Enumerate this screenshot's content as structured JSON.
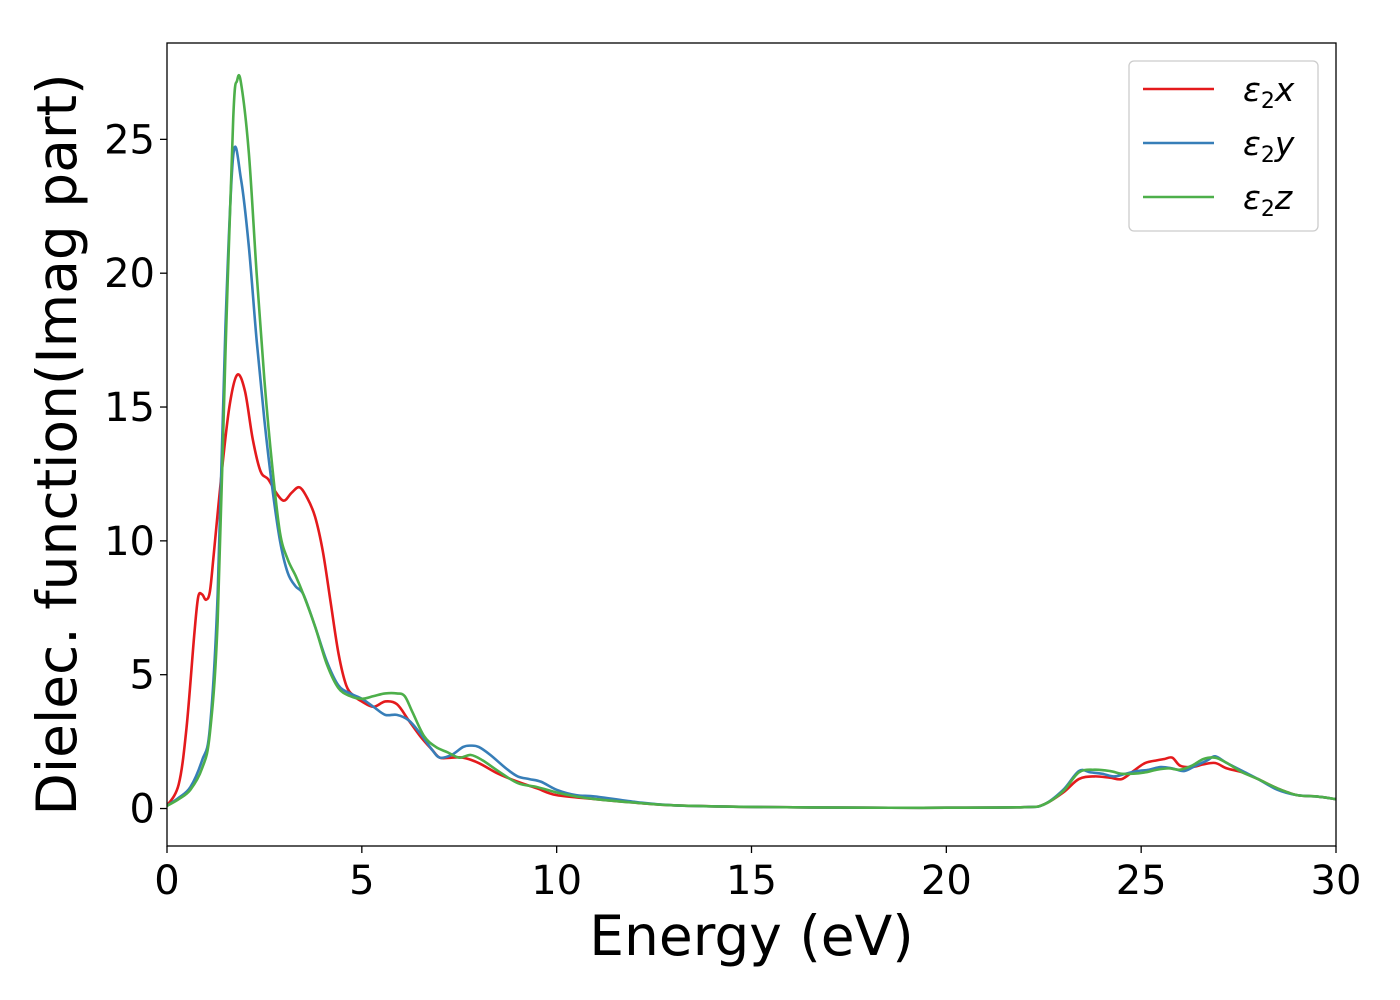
{
  "chart_data": {
    "type": "line",
    "title": "",
    "xlabel": "Energy (eV)",
    "ylabel": "Dielec. function(Imag part)",
    "xlim": [
      0,
      30
    ],
    "ylim": [
      -1.4,
      28.6
    ],
    "xticks": [
      0,
      5,
      10,
      15,
      20,
      25,
      30
    ],
    "yticks": [
      0,
      5,
      10,
      15,
      20,
      25
    ],
    "grid": false,
    "legend_position": "top-right",
    "series": [
      {
        "name": "ε2x",
        "legend_base": "ε",
        "legend_sub": "2",
        "legend_var": "x",
        "color": "#e41a1c",
        "x": [
          0,
          0.3,
          0.5,
          0.7,
          0.8,
          0.9,
          1.0,
          1.1,
          1.2,
          1.4,
          1.6,
          1.8,
          2.0,
          2.2,
          2.4,
          2.6,
          2.8,
          3.0,
          3.2,
          3.4,
          3.6,
          3.8,
          4.0,
          4.2,
          4.4,
          4.6,
          4.8,
          5.0,
          5.3,
          5.6,
          5.9,
          6.2,
          6.5,
          6.8,
          7.0,
          7.3,
          7.6,
          8.0,
          8.5,
          9.0,
          9.5,
          10.0,
          11.0,
          12.0,
          13.0,
          15.0,
          18.0,
          20.0,
          22.0,
          22.5,
          23.0,
          23.4,
          23.8,
          24.2,
          24.5,
          24.8,
          25.1,
          25.4,
          25.6,
          25.8,
          26.0,
          26.3,
          26.6,
          26.9,
          27.2,
          27.6,
          28.0,
          28.5,
          29.0,
          29.5,
          30.0
        ],
        "y": [
          0.1,
          0.9,
          3.0,
          6.5,
          7.9,
          8.0,
          7.8,
          8.1,
          9.5,
          12.5,
          15.0,
          16.2,
          15.6,
          13.8,
          12.6,
          12.3,
          11.8,
          11.5,
          11.8,
          12.0,
          11.6,
          10.9,
          9.6,
          7.7,
          5.8,
          4.6,
          4.2,
          4.0,
          3.8,
          4.0,
          3.9,
          3.3,
          2.7,
          2.2,
          1.9,
          1.9,
          1.9,
          1.7,
          1.3,
          1.0,
          0.75,
          0.5,
          0.35,
          0.22,
          0.12,
          0.06,
          0.03,
          0.03,
          0.05,
          0.15,
          0.6,
          1.1,
          1.2,
          1.15,
          1.1,
          1.4,
          1.7,
          1.8,
          1.85,
          1.9,
          1.6,
          1.55,
          1.65,
          1.7,
          1.5,
          1.35,
          1.1,
          0.75,
          0.5,
          0.45,
          0.35
        ]
      },
      {
        "name": "ε2y",
        "legend_base": "ε",
        "legend_sub": "2",
        "legend_var": "y",
        "color": "#377eb8",
        "x": [
          0,
          0.3,
          0.6,
          0.9,
          1.1,
          1.3,
          1.5,
          1.7,
          1.9,
          2.1,
          2.3,
          2.5,
          2.7,
          2.9,
          3.1,
          3.3,
          3.5,
          3.8,
          4.1,
          4.4,
          4.7,
          5.0,
          5.3,
          5.6,
          5.9,
          6.2,
          6.5,
          6.8,
          7.0,
          7.3,
          7.6,
          7.8,
          8.0,
          8.3,
          8.7,
          9.0,
          9.3,
          9.6,
          10.0,
          10.5,
          11.0,
          12.0,
          13.0,
          15.0,
          18.0,
          20.0,
          22.0,
          22.5,
          23.0,
          23.4,
          23.7,
          24.0,
          24.3,
          24.6,
          24.9,
          25.2,
          25.5,
          25.8,
          26.1,
          26.4,
          26.7,
          26.9,
          27.2,
          27.6,
          28.0,
          28.5,
          29.0,
          29.5,
          30.0
        ],
        "y": [
          0.1,
          0.4,
          0.8,
          1.8,
          3.0,
          8.0,
          18.0,
          24.4,
          23.5,
          21.0,
          17.5,
          14.5,
          12.0,
          10.0,
          8.8,
          8.3,
          8.0,
          6.8,
          5.5,
          4.6,
          4.3,
          4.1,
          3.8,
          3.5,
          3.5,
          3.3,
          2.8,
          2.2,
          1.9,
          2.0,
          2.3,
          2.35,
          2.3,
          2.0,
          1.5,
          1.2,
          1.1,
          1.0,
          0.7,
          0.5,
          0.45,
          0.25,
          0.12,
          0.06,
          0.03,
          0.03,
          0.05,
          0.15,
          0.7,
          1.4,
          1.35,
          1.3,
          1.2,
          1.3,
          1.4,
          1.45,
          1.55,
          1.5,
          1.4,
          1.6,
          1.8,
          1.95,
          1.7,
          1.4,
          1.1,
          0.7,
          0.5,
          0.45,
          0.35
        ]
      },
      {
        "name": "ε2z",
        "legend_base": "ε",
        "legend_sub": "2",
        "legend_var": "z",
        "color": "#4daf4a",
        "x": [
          0,
          0.3,
          0.6,
          0.9,
          1.1,
          1.3,
          1.5,
          1.7,
          1.8,
          1.9,
          2.1,
          2.3,
          2.5,
          2.7,
          2.9,
          3.1,
          3.3,
          3.5,
          3.8,
          4.1,
          4.4,
          4.7,
          5.0,
          5.3,
          5.6,
          5.9,
          6.1,
          6.3,
          6.6,
          6.9,
          7.2,
          7.5,
          7.8,
          8.1,
          8.5,
          9.0,
          9.5,
          10.0,
          10.5,
          11.0,
          12.0,
          13.0,
          15.0,
          18.0,
          20.0,
          22.0,
          22.5,
          23.0,
          23.4,
          23.8,
          24.2,
          24.5,
          24.8,
          25.1,
          25.4,
          25.7,
          26.0,
          26.3,
          26.6,
          26.9,
          27.2,
          27.6,
          28.0,
          28.5,
          29.0,
          29.5,
          30.0
        ],
        "y": [
          0.1,
          0.35,
          0.7,
          1.5,
          2.8,
          7.0,
          17.0,
          25.8,
          27.2,
          27.1,
          24.5,
          20.0,
          16.0,
          12.8,
          10.3,
          9.3,
          8.7,
          8.0,
          6.8,
          5.4,
          4.5,
          4.2,
          4.1,
          4.2,
          4.3,
          4.3,
          4.2,
          3.6,
          2.7,
          2.3,
          2.1,
          1.9,
          2.0,
          1.8,
          1.4,
          0.95,
          0.8,
          0.6,
          0.45,
          0.35,
          0.22,
          0.12,
          0.06,
          0.03,
          0.03,
          0.05,
          0.15,
          0.65,
          1.35,
          1.45,
          1.4,
          1.3,
          1.3,
          1.35,
          1.45,
          1.5,
          1.45,
          1.6,
          1.85,
          1.9,
          1.7,
          1.35,
          1.1,
          0.75,
          0.5,
          0.45,
          0.35
        ]
      }
    ]
  }
}
